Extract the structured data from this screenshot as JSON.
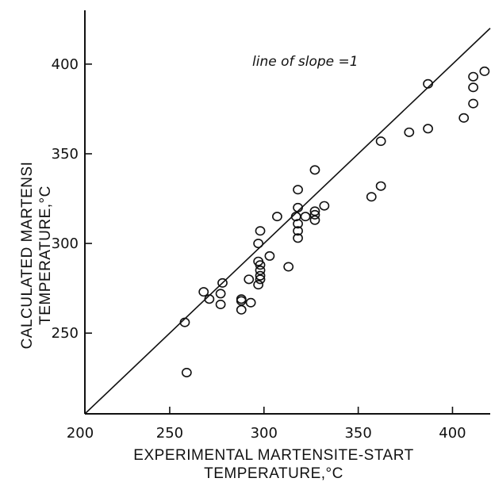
{
  "chart_data": {
    "type": "scatter",
    "title": "",
    "xlabel": [
      "EXPERIMENTAL MARTENSITE-START",
      "TEMPERATURE,°C"
    ],
    "ylabel": [
      "CALCULATED MARTENSI",
      "TEMPERATURE,°C"
    ],
    "xlim": [
      205,
      420
    ],
    "ylim": [
      205,
      430
    ],
    "xticks": [
      250,
      300,
      350,
      400
    ],
    "yticks": [
      250,
      300,
      350,
      400
    ],
    "xtick_labels": [
      "250",
      "300",
      "350",
      "400"
    ],
    "ytick_labels": [
      "250",
      "300",
      "350",
      "400"
    ],
    "origin_label": "200",
    "reference_line": {
      "slope": 1,
      "label": "line of slope =1"
    },
    "grid": false,
    "colors": {
      "ink": "#111111",
      "background": "#ffffff"
    },
    "points": [
      [
        258,
        256
      ],
      [
        259,
        228
      ],
      [
        268,
        273
      ],
      [
        271,
        269
      ],
      [
        277,
        272
      ],
      [
        278,
        278
      ],
      [
        277,
        266
      ],
      [
        288,
        269
      ],
      [
        288,
        268
      ],
      [
        288,
        263
      ],
      [
        292,
        280
      ],
      [
        293,
        267
      ],
      [
        297,
        300
      ],
      [
        298,
        307
      ],
      [
        297,
        290
      ],
      [
        298,
        288
      ],
      [
        298,
        285
      ],
      [
        298,
        282
      ],
      [
        298,
        280
      ],
      [
        297,
        277
      ],
      [
        303,
        293
      ],
      [
        307,
        315
      ],
      [
        313,
        287
      ],
      [
        318,
        330
      ],
      [
        318,
        320
      ],
      [
        317,
        315
      ],
      [
        318,
        311
      ],
      [
        318,
        307
      ],
      [
        318,
        303
      ],
      [
        322,
        315
      ],
      [
        327,
        341
      ],
      [
        327,
        318
      ],
      [
        327,
        316
      ],
      [
        327,
        313
      ],
      [
        332,
        321
      ],
      [
        357,
        326
      ],
      [
        362,
        357
      ],
      [
        362,
        332
      ],
      [
        377,
        362
      ],
      [
        387,
        389
      ],
      [
        387,
        364
      ],
      [
        406,
        370
      ],
      [
        411,
        393
      ],
      [
        411,
        387
      ],
      [
        411,
        378
      ],
      [
        417,
        396
      ]
    ]
  }
}
